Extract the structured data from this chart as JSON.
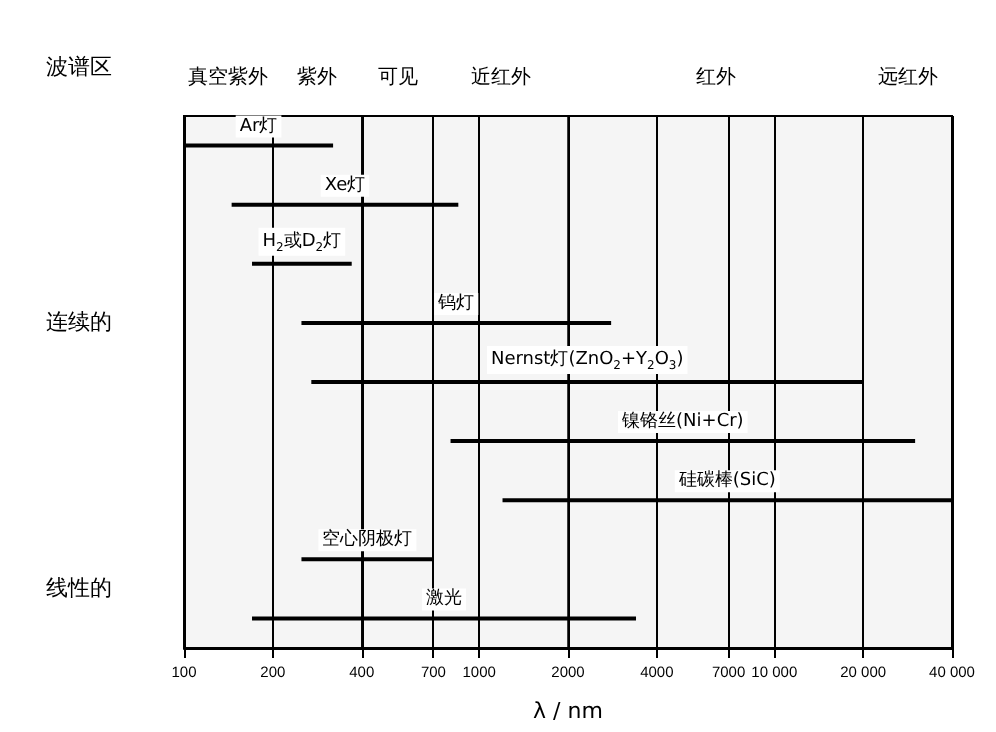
{
  "chart_data": {
    "type": "bar",
    "orientation": "horizontal",
    "xlabel": "λ / nm",
    "categories": [
      "Ar灯",
      "Xe灯",
      "H$_{2}$或D$_{2}$灯",
      "钨灯",
      "Nernst灯(ZnO$_{2}$+Y$_{2}$O$_{3}$)",
      "镍铬丝(Ni+Cr)",
      "硅碳棒(SiC)",
      "空心阴极灯",
      "激光"
    ],
    "base": [
      100,
      145,
      170,
      250,
      270,
      800,
      1200,
      250,
      170
    ],
    "values": [
      220,
      705,
      200,
      2550,
      19730,
      29200,
      38800,
      450,
      3230
    ],
    "color": "#000000",
    "log": "x",
    "xlim": [
      100,
      40000
    ],
    "xticks": [
      100,
      200,
      400,
      700,
      1000,
      2000,
      4000,
      7000,
      {
        "value": 10000,
        "label": "10 000"
      },
      {
        "value": 20000,
        "label": "20 000"
      },
      {
        "value": 40000,
        "label": "40 000"
      }
    ],
    "grid": "x",
    "tick_labels": "x",
    "bands": [
      {
        "axis": "x",
        "from": 100,
        "to": 200,
        "label": "真空紫外"
      },
      {
        "axis": "x",
        "from": 200,
        "to": 400,
        "label": "紫外"
      },
      {
        "axis": "x",
        "from": 400,
        "to": 700,
        "label": "可见"
      },
      {
        "axis": "x",
        "from": 700,
        "to": 2000,
        "label": "近红外"
      },
      {
        "axis": "x",
        "from": 2000,
        "to": 20000,
        "label": "红外"
      },
      {
        "axis": "x",
        "from": 20000,
        "to": 40000,
        "label": "远红外"
      }
    ],
    "annotations": [
      "波谱区",
      "连续的",
      "线性的"
    ]
  }
}
